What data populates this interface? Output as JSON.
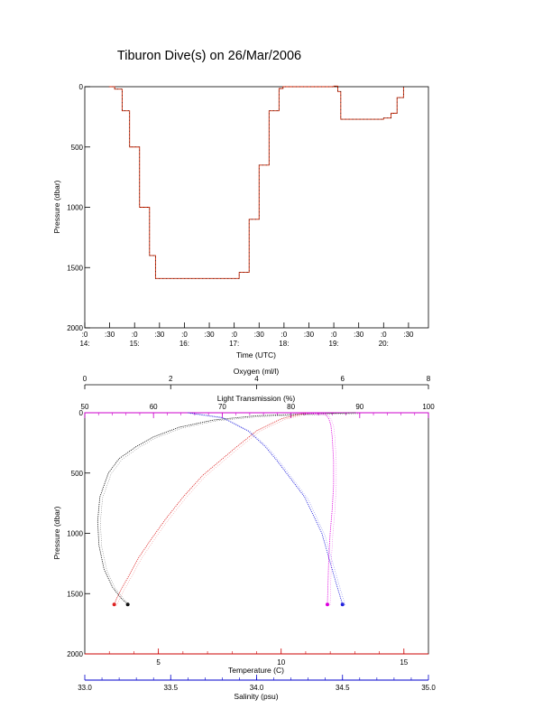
{
  "title": "Tiburon Dive(s) on 26/Mar/2006",
  "chart_data": [
    {
      "type": "line",
      "name": "pressure-time",
      "xlabel": "Time (UTC)",
      "ylabel": "Pressure (dbar)",
      "xlim": [
        14.0,
        20.9
      ],
      "ylim": [
        0,
        2000
      ],
      "y_inverted": true,
      "yticks": [
        "0",
        "500",
        "1000",
        "1500",
        "2000"
      ],
      "ytick_values": [
        0,
        500,
        1000,
        1500,
        2000
      ],
      "xticks": [
        {
          "v": 14.0,
          "top": ":0",
          "bot": "14:"
        },
        {
          "v": 14.5,
          "top": ":30",
          "bot": ""
        },
        {
          "v": 15.0,
          "top": ":0",
          "bot": "15:"
        },
        {
          "v": 15.5,
          "top": ":30",
          "bot": ""
        },
        {
          "v": 16.0,
          "top": ":0",
          "bot": "16:"
        },
        {
          "v": 16.5,
          "top": ":30",
          "bot": ""
        },
        {
          "v": 17.0,
          "top": ":0",
          "bot": "17:"
        },
        {
          "v": 17.5,
          "top": ":30",
          "bot": ""
        },
        {
          "v": 18.0,
          "top": ":0",
          "bot": "18:"
        },
        {
          "v": 18.5,
          "top": ":30",
          "bot": ""
        },
        {
          "v": 19.0,
          "top": ":0",
          "bot": "19:"
        },
        {
          "v": 19.5,
          "top": ":30",
          "bot": ""
        },
        {
          "v": 20.0,
          "top": ":0",
          "bot": "20:"
        },
        {
          "v": 20.5,
          "top": ":30",
          "bot": ""
        }
      ],
      "series": [
        {
          "color": "#cc2200",
          "x": [
            14.48,
            14.6,
            14.75,
            14.9,
            15.1,
            15.3,
            15.42,
            17.0,
            17.1,
            17.3,
            17.5,
            17.7,
            17.9,
            17.98,
            18.5,
            19.0,
            19.08,
            19.14,
            19.5,
            20.0,
            20.15,
            20.27,
            20.4
          ],
          "y": [
            0,
            20,
            200,
            500,
            1000,
            1400,
            1590,
            1590,
            1540,
            1100,
            650,
            200,
            15,
            0,
            0,
            -5,
            40,
            270,
            270,
            260,
            220,
            90,
            0
          ]
        }
      ]
    },
    {
      "type": "scatter",
      "name": "ctd-profiles",
      "ylabel": "Pressure (dbar)",
      "ylim": [
        0,
        2000
      ],
      "y_inverted": true,
      "yticks": [
        "0",
        "500",
        "1000",
        "1500",
        "2000"
      ],
      "ytick_values": [
        0,
        500,
        1000,
        1500,
        2000
      ],
      "axes": {
        "oxygen": {
          "label": "Oxygen (ml/l)",
          "lim": [
            0,
            8
          ],
          "ticks": [
            "0",
            "2",
            "4",
            "6",
            "8"
          ],
          "color": "#000000"
        },
        "light_transmission": {
          "label": "Light Transmission (%)",
          "lim": [
            50,
            100
          ],
          "ticks": [
            "50",
            "60",
            "70",
            "80",
            "90",
            "100"
          ],
          "color": "#cc00cc"
        },
        "temperature": {
          "label": "Temperature (C)",
          "lim": [
            2,
            16
          ],
          "ticks": [
            "5",
            "10",
            "15"
          ],
          "tick_values": [
            5,
            10,
            15
          ],
          "color": "#cc0000"
        },
        "salinity": {
          "label": "Salinity (psu)",
          "lim": [
            33.0,
            35.0
          ],
          "ticks": [
            "33.0",
            "33.5",
            "34.0",
            "34.5",
            "35.0"
          ],
          "color": "#0000cc"
        }
      },
      "series": [
        {
          "axis": "oxygen",
          "color": "#111111",
          "x": [
            6.3,
            5.2,
            4.0,
            3.0,
            2.2,
            1.6,
            1.2,
            0.8,
            0.55,
            0.35,
            0.3,
            0.33,
            0.45,
            0.65,
            0.85,
            1.0
          ],
          "y": [
            0,
            10,
            25,
            60,
            120,
            200,
            280,
            380,
            500,
            700,
            900,
            1100,
            1300,
            1450,
            1540,
            1590
          ]
        },
        {
          "axis": "temperature",
          "color": "#dd2222",
          "x": [
            11.0,
            10.0,
            9.0,
            8.2,
            7.5,
            6.8,
            6.0,
            5.3,
            4.7,
            4.2,
            3.8,
            3.5,
            3.3,
            3.2
          ],
          "y": [
            0,
            50,
            150,
            280,
            400,
            520,
            700,
            880,
            1050,
            1200,
            1350,
            1460,
            1540,
            1590
          ]
        },
        {
          "axis": "salinity",
          "color": "#2222dd",
          "x": [
            33.6,
            33.8,
            33.95,
            34.05,
            34.12,
            34.2,
            34.28,
            34.33,
            34.38,
            34.42,
            34.46,
            34.5
          ],
          "y": [
            0,
            40,
            150,
            280,
            400,
            550,
            700,
            850,
            1000,
            1200,
            1400,
            1590
          ]
        },
        {
          "axis": "light_transmission",
          "color": "#dd00dd",
          "x": [
            80,
            85,
            85.5,
            85.8,
            86,
            86.2,
            86.2,
            86.0,
            85.7,
            85.5,
            85.4,
            85.3
          ],
          "y": [
            0,
            10,
            50,
            100,
            200,
            400,
            600,
            800,
            1000,
            1200,
            1400,
            1590
          ]
        }
      ]
    }
  ]
}
